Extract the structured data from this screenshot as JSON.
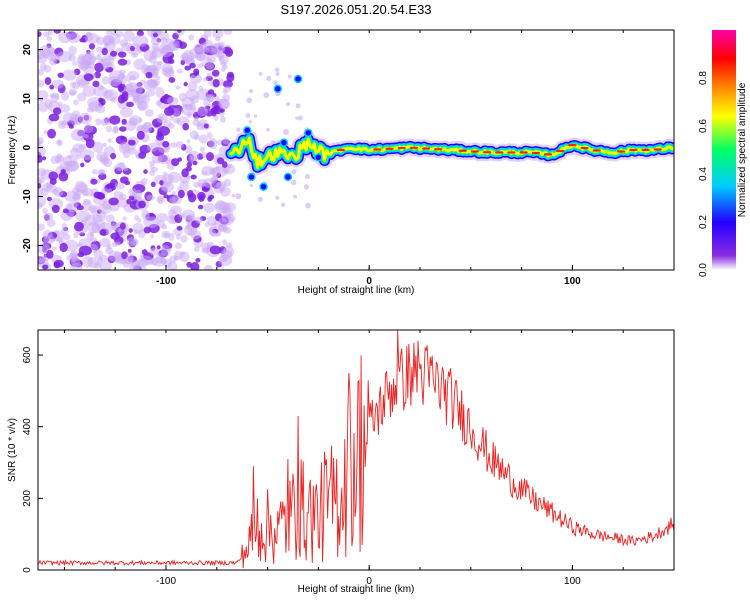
{
  "figure_title": "S197.2026.051.20.54.E33",
  "colors": {
    "signal": "#ee2222",
    "scatter": "#8a2be2",
    "frame": "#000000"
  },
  "chart_data": [
    {
      "type": "heatmap",
      "title": "S197.2026.051.20.54.E33",
      "xlabel": "Height of straight line (km)",
      "ylabel": "Frequency (Hz)",
      "xlim": [
        -163,
        150
      ],
      "ylim": [
        -25,
        24
      ],
      "xticks": [
        -100,
        0,
        100
      ],
      "yticks": [
        -20,
        -10,
        0,
        10,
        20
      ],
      "colorbar": {
        "label": "Normalized spectral amplitude",
        "range": [
          0,
          1
        ],
        "ticks": [
          0.0,
          0.2,
          0.4,
          0.6,
          0.8
        ],
        "tick_labels": [
          "0.0",
          "0.2",
          "0.4",
          "0.6",
          "0.8"
        ],
        "stops": [
          "#ffffff",
          "#8a2be2",
          "#2200ff",
          "#00ccff",
          "#00ff66",
          "#ffff00",
          "#ff8800",
          "#ff0000",
          "#ff00aa"
        ]
      },
      "noise_region_x": [
        -163,
        -68
      ],
      "ridge": [
        {
          "x": -68,
          "f": -2
        },
        {
          "x": -60,
          "f": 2
        },
        {
          "x": -55,
          "f": -3
        },
        {
          "x": -45,
          "f": -1
        },
        {
          "x": -38,
          "f": -2
        },
        {
          "x": -30,
          "f": 1
        },
        {
          "x": -22,
          "f": -1.5
        },
        {
          "x": -10,
          "f": 0
        },
        {
          "x": 0,
          "f": -0.5
        },
        {
          "x": 20,
          "f": 0
        },
        {
          "x": 40,
          "f": -0.5
        },
        {
          "x": 60,
          "f": -1
        },
        {
          "x": 80,
          "f": -1
        },
        {
          "x": 90,
          "f": -1.5
        },
        {
          "x": 100,
          "f": 0.5
        },
        {
          "x": 110,
          "f": -0.5
        },
        {
          "x": 120,
          "f": -1
        },
        {
          "x": 130,
          "f": -0.5
        },
        {
          "x": 140,
          "f": -0.5
        },
        {
          "x": 150,
          "f": 0
        }
      ]
    },
    {
      "type": "line",
      "xlabel": "Height of straight line (km)",
      "ylabel": "SNR (10 * v/v)",
      "xlim": [
        -163,
        150
      ],
      "ylim": [
        0,
        670
      ],
      "xticks": [
        -100,
        0,
        100
      ],
      "yticks": [
        0,
        200,
        400,
        600
      ],
      "envelope": [
        {
          "x": -163,
          "y": 20
        },
        {
          "x": -65,
          "y": 20
        },
        {
          "x": -60,
          "y": 60
        },
        {
          "x": -55,
          "y": 130
        },
        {
          "x": -45,
          "y": 110
        },
        {
          "x": -35,
          "y": 170
        },
        {
          "x": -25,
          "y": 150
        },
        {
          "x": -15,
          "y": 210
        },
        {
          "x": -10,
          "y": 270
        },
        {
          "x": 0,
          "y": 400
        },
        {
          "x": 10,
          "y": 500
        },
        {
          "x": 20,
          "y": 550
        },
        {
          "x": 30,
          "y": 540
        },
        {
          "x": 40,
          "y": 480
        },
        {
          "x": 50,
          "y": 400
        },
        {
          "x": 60,
          "y": 310
        },
        {
          "x": 70,
          "y": 250
        },
        {
          "x": 80,
          "y": 200
        },
        {
          "x": 90,
          "y": 160
        },
        {
          "x": 100,
          "y": 120
        },
        {
          "x": 110,
          "y": 100
        },
        {
          "x": 120,
          "y": 90
        },
        {
          "x": 130,
          "y": 80
        },
        {
          "x": 140,
          "y": 95
        },
        {
          "x": 150,
          "y": 130
        }
      ],
      "spikes": [
        {
          "x": -57,
          "y": 290
        },
        {
          "x": -40,
          "y": 310
        },
        {
          "x": -35,
          "y": 430
        },
        {
          "x": -22,
          "y": 330
        },
        {
          "x": -10,
          "y": 550
        },
        {
          "x": 14,
          "y": 670
        },
        {
          "x": 24,
          "y": 640
        }
      ]
    }
  ]
}
